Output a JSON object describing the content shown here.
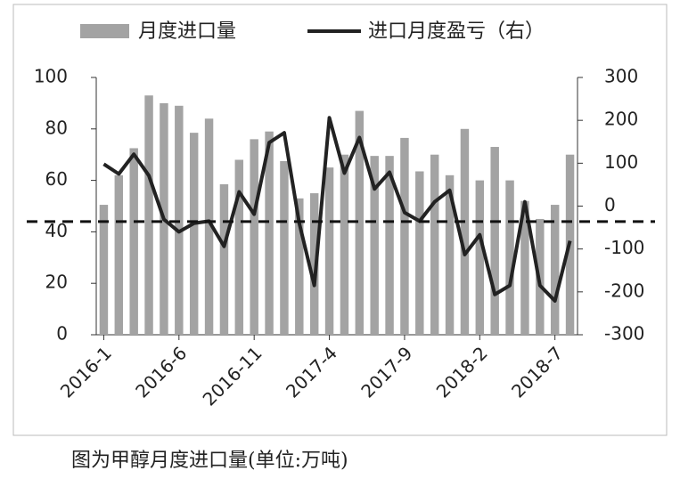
{
  "chart_data": {
    "type": "bar_line",
    "caption": "图为甲醇月度进口量(单位:万吨)",
    "categories": [
      "2016-1",
      null,
      null,
      null,
      null,
      "2016-6",
      null,
      null,
      null,
      null,
      "2016-11",
      null,
      null,
      null,
      null,
      "2017-4",
      null,
      null,
      null,
      null,
      "2017-9",
      null,
      null,
      null,
      null,
      "2018-2",
      null,
      null,
      null,
      null,
      "2018-7",
      null
    ],
    "series": [
      {
        "name": "月度进口量",
        "type": "bar",
        "color": "#a3a3a3",
        "values": [
          50.5,
          62,
          72.5,
          93,
          90,
          89,
          78.5,
          84,
          58.5,
          68,
          76,
          79,
          67.5,
          53,
          55,
          65,
          70,
          87,
          69.5,
          69.5,
          76.5,
          63.5,
          70,
          62,
          80,
          60,
          73,
          60,
          52,
          45,
          50.5,
          70
        ]
      },
      {
        "name": "进口月度盈亏（右）",
        "type": "line",
        "axis": "y2",
        "color": "#222222",
        "values": [
          98,
          75,
          121,
          71,
          -31,
          -60,
          -40,
          -35,
          -94,
          33,
          -19,
          148,
          171,
          -40,
          -185,
          206,
          77,
          160,
          40,
          79,
          -15,
          -35,
          10,
          37,
          -113,
          -67,
          -206,
          -185,
          10,
          -185,
          -221,
          -81
        ]
      }
    ],
    "hline": 44,
    "ylim": [
      0,
      100
    ],
    "yticks": [
      0,
      20,
      40,
      60,
      80,
      100
    ],
    "y2lim": [
      -300,
      300
    ],
    "y2ticks": [
      -300,
      -200,
      -100,
      0,
      100,
      200,
      300
    ],
    "legend": "top"
  }
}
